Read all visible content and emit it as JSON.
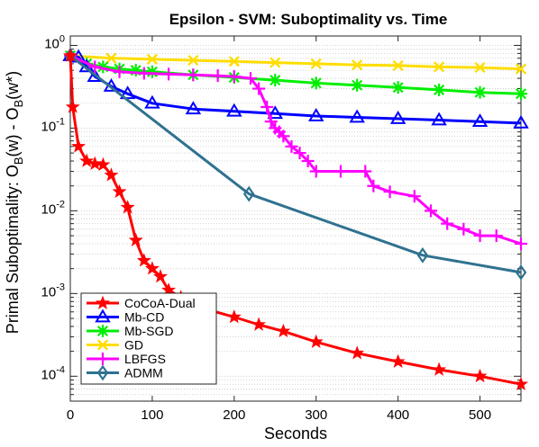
{
  "chart_data": {
    "type": "line",
    "title": "Epsilon - SVM: Suboptimality vs. Time",
    "xlabel": "Seconds",
    "ylabel_parts": [
      "Primal Suboptimality: O",
      "B",
      "(w) - O",
      "B",
      "(w*)"
    ],
    "xlim": [
      0,
      550
    ],
    "ylim": [
      5e-05,
      1.3
    ],
    "yscale": "log",
    "grid": "y-minor dotted",
    "legend_position": "bottom-left",
    "x_ticks": [
      "0",
      "100",
      "200",
      "300",
      "400",
      "500"
    ],
    "y_ticks": [
      {
        "base": "10",
        "exp": "0"
      },
      {
        "base": "10",
        "exp": "-1"
      },
      {
        "base": "10",
        "exp": "-2"
      },
      {
        "base": "10",
        "exp": "-3"
      },
      {
        "base": "10",
        "exp": "-4"
      }
    ],
    "series": [
      {
        "name": "CoCoA-Dual",
        "color": "#ff0000",
        "marker": "star",
        "x": [
          0,
          3,
          10,
          20,
          30,
          40,
          50,
          60,
          70,
          80,
          90,
          100,
          110,
          120,
          135,
          150,
          170,
          200,
          230,
          260,
          300,
          350,
          400,
          450,
          500,
          550
        ],
        "y": [
          0.75,
          0.18,
          0.06,
          0.04,
          0.037,
          0.036,
          0.027,
          0.017,
          0.011,
          0.0044,
          0.0025,
          0.002,
          0.0016,
          0.0011,
          0.0009,
          0.00075,
          0.00063,
          0.00052,
          0.00042,
          0.00035,
          0.00026,
          0.00019,
          0.00015,
          0.00012,
          0.0001,
          8e-05
        ],
        "marker_every": 1
      },
      {
        "name": "Mb-CD",
        "color": "#0000ff",
        "marker": "triangle",
        "x": [
          0,
          10,
          20,
          30,
          50,
          70,
          100,
          150,
          200,
          250,
          300,
          350,
          400,
          450,
          500,
          550
        ],
        "y": [
          0.75,
          0.72,
          0.55,
          0.42,
          0.32,
          0.26,
          0.2,
          0.17,
          0.16,
          0.15,
          0.14,
          0.135,
          0.13,
          0.125,
          0.12,
          0.115
        ],
        "marker_every": 1
      },
      {
        "name": "Mb-SGD",
        "color": "#00ee00",
        "marker": "x-star",
        "x": [
          0,
          20,
          40,
          60,
          80,
          100,
          150,
          200,
          250,
          300,
          350,
          400,
          450,
          500,
          550
        ],
        "y": [
          0.75,
          0.6,
          0.55,
          0.52,
          0.5,
          0.48,
          0.44,
          0.41,
          0.38,
          0.35,
          0.33,
          0.31,
          0.29,
          0.27,
          0.26
        ],
        "marker_every": 1
      },
      {
        "name": "GD",
        "color": "#ffdd00",
        "marker": "x",
        "x": [
          0,
          50,
          100,
          150,
          200,
          250,
          300,
          350,
          400,
          450,
          500,
          550
        ],
        "y": [
          0.75,
          0.7,
          0.68,
          0.66,
          0.64,
          0.62,
          0.6,
          0.58,
          0.57,
          0.55,
          0.54,
          0.52
        ],
        "marker_every": 1
      },
      {
        "name": "LBFGS",
        "color": "#ff00ff",
        "marker": "plus",
        "x": [
          0,
          30,
          60,
          90,
          120,
          150,
          180,
          200,
          220,
          230,
          240,
          245,
          250,
          255,
          260,
          270,
          280,
          290,
          300,
          330,
          360,
          370,
          390,
          420,
          440,
          460,
          480,
          500,
          520,
          550
        ],
        "y": [
          0.75,
          0.55,
          0.48,
          0.46,
          0.45,
          0.44,
          0.43,
          0.42,
          0.4,
          0.3,
          0.18,
          0.12,
          0.1,
          0.09,
          0.08,
          0.06,
          0.05,
          0.04,
          0.03,
          0.03,
          0.03,
          0.02,
          0.017,
          0.015,
          0.01,
          0.007,
          0.006,
          0.005,
          0.005,
          0.004
        ],
        "marker_every": 1
      },
      {
        "name": "ADMM",
        "color": "#2f7290",
        "marker": "diamond",
        "x": [
          0,
          218,
          430,
          550
        ],
        "y": [
          0.75,
          0.016,
          0.0029,
          0.0018
        ],
        "marker_every": 1
      }
    ]
  }
}
